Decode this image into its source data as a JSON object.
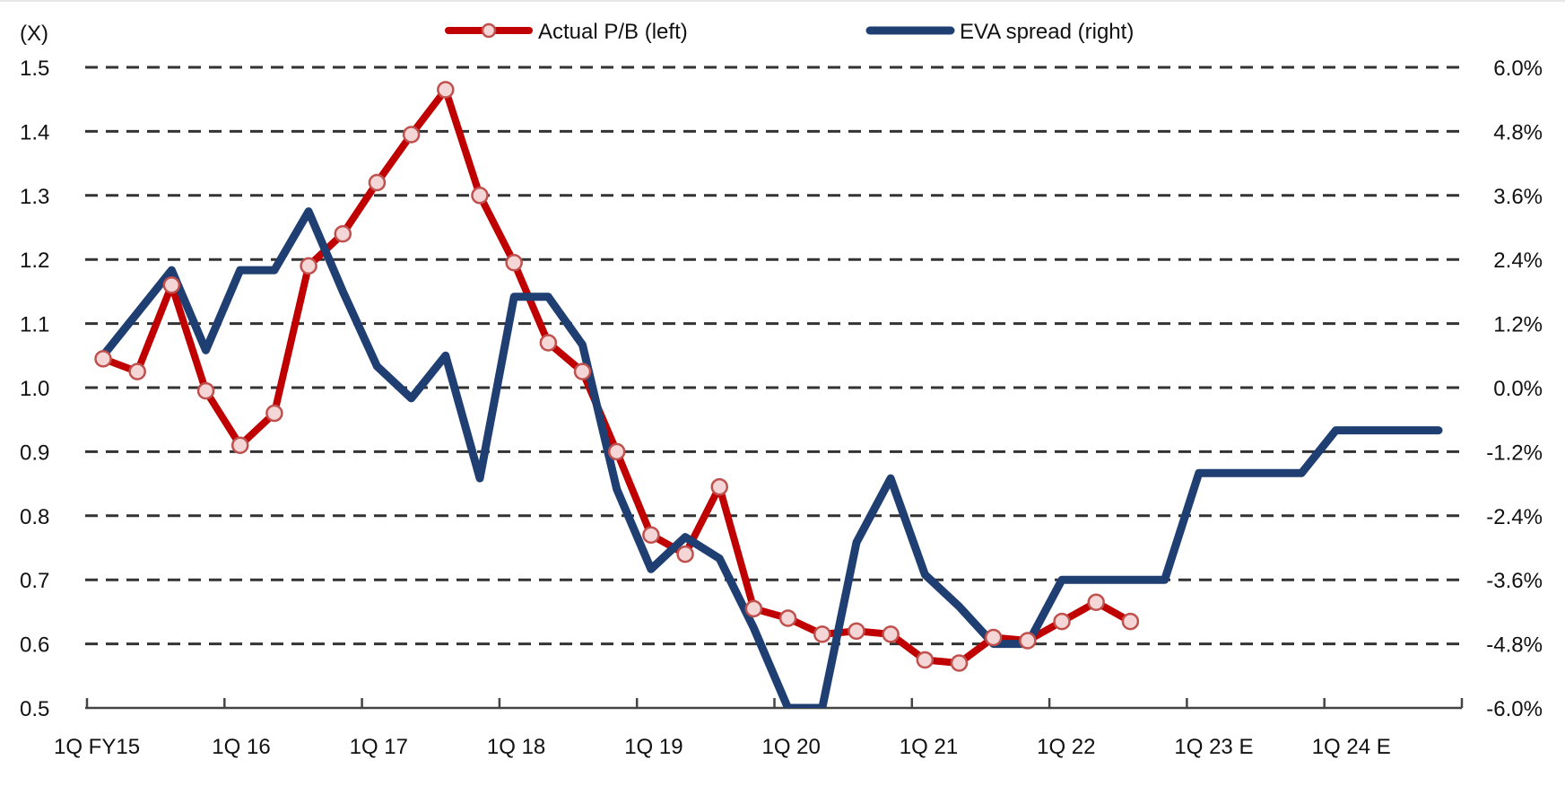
{
  "chart_data": {
    "type": "line",
    "title": "",
    "left_axis_unit": "(X)",
    "x_tick_labels": [
      "1Q FY15",
      "1Q 16",
      "1Q 17",
      "1Q 18",
      "1Q 19",
      "1Q 20",
      "1Q 21",
      "1Q 22",
      "1Q 23 E",
      "1Q 24 E"
    ],
    "y_left": {
      "min": 0.5,
      "max": 1.5,
      "ticks": [
        "1.5",
        "1.4",
        "1.3",
        "1.2",
        "1.1",
        "1.0",
        "0.9",
        "0.8",
        "0.7",
        "0.6",
        "0.5"
      ]
    },
    "y_right": {
      "min": -6.0,
      "max": 6.0,
      "unit": "%",
      "ticks": [
        "6.0%",
        "4.8%",
        "3.6%",
        "2.4%",
        "1.2%",
        "0.0%",
        "-1.2%",
        "-2.4%",
        "-3.6%",
        "-4.8%",
        "-6.0%"
      ]
    },
    "grid": true,
    "legend_position": "top",
    "series": [
      {
        "name": "Actual P/B (left)",
        "axis": "left",
        "color": "#C00000",
        "marker": "circle",
        "quarters": [
          0,
          1,
          2,
          3,
          4,
          5,
          6,
          7,
          8,
          9,
          10,
          11,
          12,
          13,
          14,
          15,
          16,
          17,
          18,
          19,
          20,
          21,
          22,
          23,
          24,
          25,
          26,
          27,
          28,
          29,
          30
        ],
        "values": [
          1.045,
          1.025,
          1.16,
          0.995,
          0.91,
          0.96,
          1.19,
          1.24,
          1.32,
          1.395,
          1.465,
          1.3,
          1.195,
          1.07,
          1.025,
          0.9,
          0.77,
          0.74,
          0.845,
          0.655,
          0.64,
          0.615,
          0.62,
          0.615,
          0.575,
          0.57,
          0.61,
          0.605,
          0.635,
          0.665,
          0.635
        ]
      },
      {
        "name": "EVA spread (right)",
        "axis": "right",
        "color": "#1F3F73",
        "marker": "none",
        "quarters": [
          0,
          1,
          2,
          3,
          4,
          5,
          6,
          7,
          8,
          9,
          10,
          11,
          12,
          13,
          14,
          15,
          16,
          17,
          18,
          19,
          20,
          21,
          22,
          23,
          24,
          25,
          26,
          27,
          28,
          29,
          30,
          31,
          32,
          33,
          34,
          35,
          36,
          37,
          38,
          39
        ],
        "values": [
          0.6,
          1.4,
          2.2,
          0.7,
          2.2,
          2.2,
          3.3,
          1.8,
          0.4,
          -0.2,
          0.6,
          -1.7,
          1.7,
          1.7,
          0.8,
          -1.9,
          -3.4,
          -2.8,
          -3.2,
          -4.5,
          -6.0,
          -6.0,
          -2.9,
          -1.7,
          -3.5,
          -4.1,
          -4.8,
          -4.8,
          -3.6,
          -3.6,
          -3.6,
          -3.6,
          -1.6,
          -1.6,
          -1.6,
          -1.6,
          -0.8,
          -0.8,
          -0.8,
          -0.8
        ]
      }
    ]
  }
}
